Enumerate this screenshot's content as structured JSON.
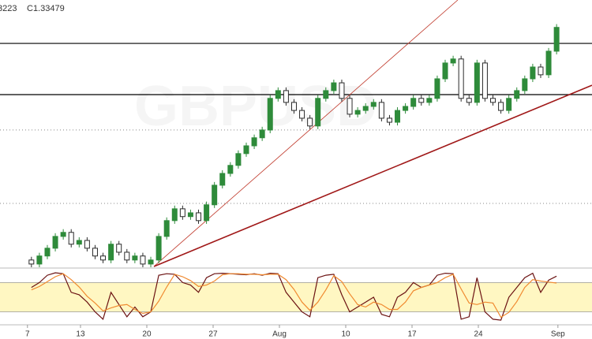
{
  "chart_data": [
    {
      "type": "candlestick",
      "header_value": "3223",
      "header_close": "C1.33479",
      "watermark": "GBPUSD",
      "xlim": [
        -1.07,
        43.57
      ],
      "ylim": [
        1.245,
        1.345
      ],
      "up_color": "#2e8b3a",
      "down_color": "#2b2b2b",
      "x": [
        1.3,
        1.9,
        2.5,
        3.1,
        3.7,
        4.3,
        4.9,
        5.5,
        6.1,
        6.7,
        7.3,
        7.9,
        8.5,
        9.1,
        9.7,
        10.3,
        10.9,
        11.5,
        12.1,
        12.7,
        13.3,
        13.9,
        14.5,
        15.1,
        15.7,
        16.3,
        16.9,
        17.5,
        18.1,
        18.7,
        19.3,
        19.9,
        20.5,
        21.1,
        21.7,
        22.3,
        22.9,
        23.5,
        24.1,
        24.7,
        25.3,
        25.9,
        26.5,
        27.1,
        27.7,
        28.3,
        28.9,
        29.5,
        30.1,
        30.7,
        31.3,
        31.9,
        32.5,
        33.1,
        33.7,
        34.3,
        34.9,
        35.5,
        36.1,
        36.7,
        37.3,
        37.9,
        38.5,
        39.1,
        39.7,
        40.3,
        40.9
      ],
      "candles": [
        [
          1.248,
          1.2492,
          1.2453,
          1.2465
        ],
        [
          1.2465,
          1.2507,
          1.2453,
          1.2495
        ],
        [
          1.2495,
          1.2536,
          1.2483,
          1.2524
        ],
        [
          1.2524,
          1.258,
          1.2512,
          1.2568
        ],
        [
          1.2568,
          1.2595,
          1.2556,
          1.2583
        ],
        [
          1.2583,
          1.2595,
          1.2527,
          1.2539
        ],
        [
          1.2539,
          1.2565,
          1.2527,
          1.2553
        ],
        [
          1.2553,
          1.2565,
          1.2512,
          1.2524
        ],
        [
          1.2524,
          1.2536,
          1.2483,
          1.2495
        ],
        [
          1.2495,
          1.2507,
          1.2468,
          1.248
        ],
        [
          1.248,
          1.2551,
          1.2468,
          1.2539
        ],
        [
          1.2539,
          1.2551,
          1.2497,
          1.2509
        ],
        [
          1.2509,
          1.2521,
          1.2468,
          1.248
        ],
        [
          1.248,
          1.2507,
          1.2468,
          1.2495
        ],
        [
          1.2495,
          1.2507,
          1.2453,
          1.2465
        ],
        [
          1.2465,
          1.2492,
          1.2453,
          1.248
        ],
        [
          1.248,
          1.258,
          1.2468,
          1.2568
        ],
        [
          1.2568,
          1.2639,
          1.2556,
          1.2627
        ],
        [
          1.2627,
          1.2683,
          1.2615,
          1.2671
        ],
        [
          1.2671,
          1.2683,
          1.263,
          1.2642
        ],
        [
          1.2642,
          1.2668,
          1.263,
          1.2656
        ],
        [
          1.2656,
          1.2668,
          1.2615,
          1.2627
        ],
        [
          1.2627,
          1.2698,
          1.2615,
          1.2686
        ],
        [
          1.2686,
          1.2771,
          1.2674,
          1.2759
        ],
        [
          1.2759,
          1.2815,
          1.2747,
          1.2803
        ],
        [
          1.2803,
          1.2845,
          1.2791,
          1.2833
        ],
        [
          1.2833,
          1.2889,
          1.2821,
          1.2877
        ],
        [
          1.2877,
          1.2918,
          1.2865,
          1.2906
        ],
        [
          1.2906,
          1.2948,
          1.2894,
          1.2936
        ],
        [
          1.2936,
          1.2977,
          1.2924,
          1.2965
        ],
        [
          1.2965,
          1.3095,
          1.2953,
          1.3083
        ],
        [
          1.3083,
          1.3124,
          1.3071,
          1.3112
        ],
        [
          1.3112,
          1.3124,
          1.3056,
          1.3068
        ],
        [
          1.3068,
          1.308,
          1.3026,
          1.3038
        ],
        [
          1.3038,
          1.305,
          1.2997,
          1.3009
        ],
        [
          1.3009,
          1.3021,
          1.2968,
          1.298
        ],
        [
          1.298,
          1.3095,
          1.2968,
          1.3083
        ],
        [
          1.3083,
          1.3124,
          1.3071,
          1.3112
        ],
        [
          1.3112,
          1.3153,
          1.31,
          1.3141
        ],
        [
          1.3141,
          1.3153,
          1.3071,
          1.3083
        ],
        [
          1.3083,
          1.3095,
          1.3012,
          1.3024
        ],
        [
          1.3024,
          1.305,
          1.3012,
          1.3038
        ],
        [
          1.3038,
          1.3065,
          1.3026,
          1.3053
        ],
        [
          1.3053,
          1.308,
          1.3041,
          1.3068
        ],
        [
          1.3068,
          1.308,
          1.2997,
          1.3009
        ],
        [
          1.3009,
          1.3021,
          1.2982,
          1.2994
        ],
        [
          1.2994,
          1.305,
          1.2982,
          1.3038
        ],
        [
          1.3038,
          1.3065,
          1.3026,
          1.3053
        ],
        [
          1.3053,
          1.3095,
          1.3041,
          1.3083
        ],
        [
          1.3083,
          1.3095,
          1.3056,
          1.3068
        ],
        [
          1.3068,
          1.3095,
          1.3056,
          1.3083
        ],
        [
          1.3083,
          1.3168,
          1.3071,
          1.3156
        ],
        [
          1.3156,
          1.3227,
          1.3144,
          1.3215
        ],
        [
          1.3215,
          1.3242,
          1.3203,
          1.323
        ],
        [
          1.323,
          1.3242,
          1.3071,
          1.3083
        ],
        [
          1.3083,
          1.3095,
          1.3056,
          1.3068
        ],
        [
          1.3068,
          1.3227,
          1.3056,
          1.3215
        ],
        [
          1.3215,
          1.3227,
          1.3071,
          1.3083
        ],
        [
          1.3083,
          1.3095,
          1.3056,
          1.3068
        ],
        [
          1.3068,
          1.308,
          1.3026,
          1.3038
        ],
        [
          1.3038,
          1.3095,
          1.3026,
          1.3083
        ],
        [
          1.3083,
          1.3124,
          1.3071,
          1.3112
        ],
        [
          1.3112,
          1.3168,
          1.31,
          1.3156
        ],
        [
          1.3156,
          1.3212,
          1.3144,
          1.32
        ],
        [
          1.32,
          1.3212,
          1.3159,
          1.3171
        ],
        [
          1.3171,
          1.3271,
          1.3159,
          1.3259
        ],
        [
          1.3259,
          1.336,
          1.3247,
          1.33479
        ]
      ],
      "levels": [
        {
          "value": 1.3288,
          "color": "#000000",
          "style": "solid"
        },
        {
          "value": 1.3097,
          "color": "#000000",
          "style": "solid"
        },
        {
          "value": 1.2965,
          "color": "#888888",
          "style": "dotted"
        },
        {
          "value": 1.2691,
          "color": "#888888",
          "style": "dotted"
        }
      ],
      "trendlines": [
        {
          "start": [
            10.54,
            1.2456
          ],
          "end": [
            33.45,
            1.345
          ],
          "color": "#c0392b",
          "width": 0.8
        },
        {
          "start": [
            10.54,
            1.2456
          ],
          "end": [
            43.57,
            1.3132
          ],
          "color": "#a01818",
          "width": 1.6
        }
      ]
    },
    {
      "type": "line",
      "xlim": [
        -1.07,
        43.57
      ],
      "ylim": [
        0,
        100
      ],
      "band": [
        20,
        80
      ],
      "band_color": "#fff7c2",
      "xticks": [
        {
          "value": 1,
          "label": "7"
        },
        {
          "value": 5,
          "label": "13"
        },
        {
          "value": 10,
          "label": "20"
        },
        {
          "value": 15,
          "label": "27"
        },
        {
          "value": 20,
          "label": "Aug"
        },
        {
          "value": 25,
          "label": "10"
        },
        {
          "value": 30,
          "label": "17"
        },
        {
          "value": 35,
          "label": "24"
        },
        {
          "value": 41,
          "label": "Sep"
        }
      ],
      "x": [
        1.3,
        1.9,
        2.5,
        3.1,
        3.7,
        4.3,
        4.9,
        5.5,
        6.1,
        6.7,
        7.3,
        7.9,
        8.5,
        9.1,
        9.7,
        10.3,
        10.9,
        11.5,
        12.1,
        12.7,
        13.3,
        13.9,
        14.5,
        15.1,
        15.7,
        16.3,
        16.9,
        17.5,
        18.1,
        18.7,
        19.3,
        19.9,
        20.5,
        21.1,
        21.7,
        22.3,
        22.9,
        23.5,
        24.1,
        24.7,
        25.3,
        25.9,
        26.5,
        27.1,
        27.7,
        28.3,
        28.9,
        29.5,
        30.1,
        30.7,
        31.3,
        31.9,
        32.5,
        33.1,
        33.7,
        34.3,
        34.9,
        35.5,
        36.1,
        36.7,
        37.3,
        37.9,
        38.5,
        39.1,
        39.7,
        40.3,
        40.9
      ],
      "series": [
        {
          "color": "#6b1212",
          "values": [
            70,
            80,
            95,
            100,
            98,
            60,
            55,
            40,
            20,
            5,
            60,
            35,
            10,
            30,
            10,
            20,
            95,
            98,
            97,
            80,
            75,
            60,
            90,
            98,
            99,
            98,
            97,
            96,
            98,
            95,
            99,
            98,
            60,
            40,
            20,
            10,
            90,
            95,
            97,
            55,
            20,
            30,
            40,
            50,
            15,
            10,
            50,
            60,
            80,
            70,
            75,
            95,
            99,
            98,
            5,
            10,
            90,
            20,
            5,
            3,
            50,
            70,
            90,
            99,
            60,
            85,
            93
          ]
        },
        {
          "color": "#f08a30",
          "values": [
            65,
            72,
            82,
            92,
            98,
            86,
            71,
            52,
            38,
            22,
            28,
            33,
            35,
            25,
            17,
            20,
            42,
            71,
            97,
            92,
            84,
            72,
            75,
            83,
            96,
            98,
            98,
            97,
            97,
            96,
            97,
            97,
            86,
            66,
            40,
            23,
            40,
            65,
            94,
            82,
            57,
            35,
            30,
            40,
            35,
            25,
            25,
            40,
            63,
            70,
            75,
            80,
            90,
            97,
            67,
            38,
            35,
            40,
            38,
            9,
            19,
            41,
            70,
            86,
            83,
            81,
            79
          ]
        }
      ]
    }
  ]
}
